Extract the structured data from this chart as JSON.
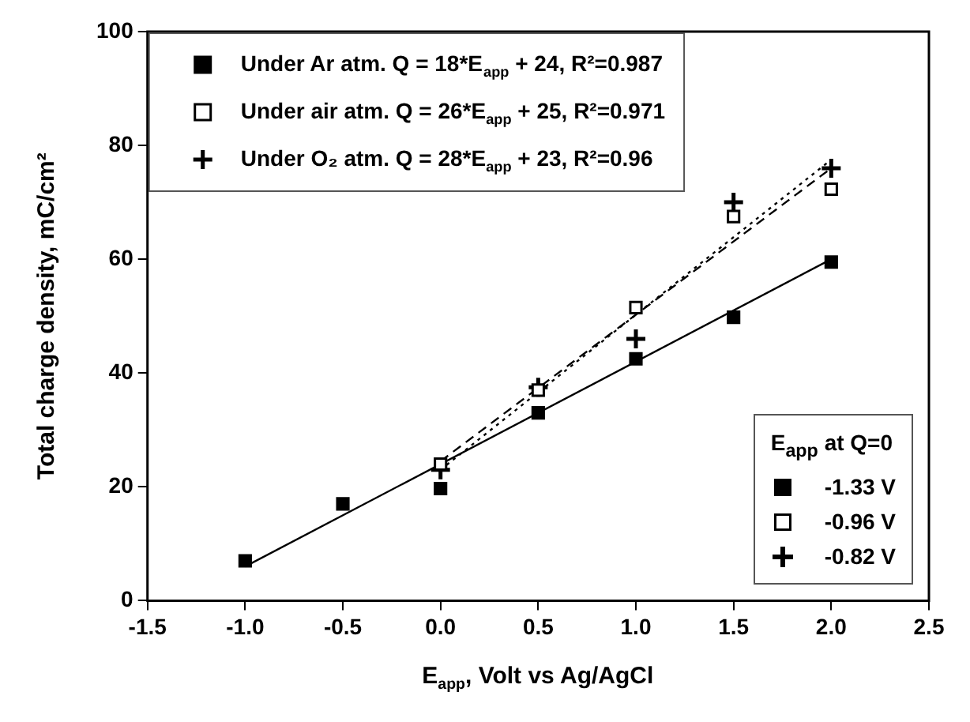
{
  "chart_data": {
    "type": "scatter",
    "xlabel": "E$_{app}$, Volt vs Ag/AgCl",
    "ylabel": "Total charge density, mC/cm²",
    "xlim": [
      -1.5,
      2.5
    ],
    "xticks": [
      -1.5,
      {
        "value": -1,
        "label": "-1.0"
      },
      -0.5,
      {
        "value": 0,
        "label": "0.0"
      },
      0.5,
      {
        "value": 1,
        "label": "1.0"
      },
      1.5,
      {
        "value": 2,
        "label": "2.0"
      },
      2.5
    ],
    "ylim": [
      0,
      100
    ],
    "yticks": [
      0,
      20,
      40,
      60,
      80,
      100
    ],
    "grid": false,
    "legend": "top left",
    "series": [
      {
        "name": "Under Ar atm. Q = 18*E$_{app}$ + 24, R²=0.987",
        "color": "#000000",
        "marker": "square",
        "x": [
          -1,
          -0.5,
          0,
          0.5,
          1,
          1.5,
          2
        ],
        "values": [
          7,
          17,
          19.7,
          33,
          42.5,
          49.8,
          59.5
        ]
      },
      {
        "name": "Under air atm. Q = 26*E$_{app}$ + 25, R²=0.971",
        "color": "#000000",
        "marker": "square-open",
        "x": [
          0,
          0.5,
          1,
          1.5,
          2
        ],
        "values": [
          24,
          37,
          51.5,
          67.5,
          72.3
        ]
      },
      {
        "name": "Under O₂ atm. Q = 28*E$_{app}$ + 23, R²=0.96",
        "color": "#000000",
        "marker": "cross",
        "x": [
          0,
          0.5,
          1,
          1.5,
          2
        ],
        "values": [
          23,
          37.5,
          46,
          70,
          76
        ]
      },
      {
        "type": "line",
        "color": "#000000",
        "line_style": "solid",
        "x": [
          -1,
          2
        ],
        "values": [
          6,
          60
        ]
      },
      {
        "type": "line",
        "color": "#000000",
        "line_style": "dashed",
        "x": [
          0,
          2
        ],
        "values": [
          24.5,
          76
        ]
      },
      {
        "type": "line",
        "color": "#000000",
        "line_style": "dotted",
        "x": [
          0,
          2
        ],
        "values": [
          23,
          77.5
        ]
      }
    ],
    "annotations": [
      "E$_{app}$ at Q=0",
      "-1.33 V",
      "-0.96 V",
      "-0.82 V"
    ]
  }
}
